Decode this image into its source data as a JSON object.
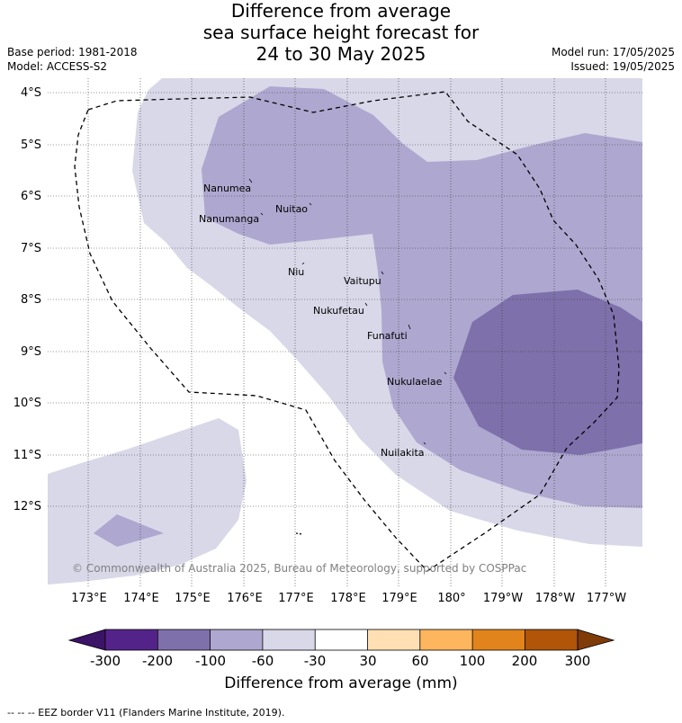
{
  "title": {
    "line1": "Difference from average",
    "line2": "sea surface height forecast for",
    "line3": "24 to 30 May 2025"
  },
  "meta": {
    "base_period": "Base period: 1981-2018",
    "model": "Model: ACCESS-S2",
    "model_run": "Model run: 17/05/2025",
    "issued": "Issued: 19/05/2025"
  },
  "latitudes": [
    "4°S",
    "5°S",
    "6°S",
    "7°S",
    "8°S",
    "9°S",
    "10°S",
    "11°S",
    "12°S"
  ],
  "longitudes": [
    "173°E",
    "174°E",
    "175°E",
    "176°E",
    "177°E",
    "178°E",
    "179°E",
    "180°",
    "179°W",
    "178°W",
    "177°W"
  ],
  "islands": [
    "Nanumea",
    "Nuitao",
    "Nanumanga",
    "Niu",
    "Vaitupu",
    "Nukufetau",
    "Funafuti",
    "Nukulaelae",
    "Nuilakita"
  ],
  "copyright": "© Commonwealth of Australia 2025, Bureau of Meteorology, supported by COSPPac",
  "colorbar": {
    "labels": [
      "-300",
      "-200",
      "-100",
      "-60",
      "-30",
      "30",
      "60",
      "100",
      "200",
      "300"
    ],
    "colors": [
      "#3b1367",
      "#54238a",
      "#7e70ab",
      "#aea7cf",
      "#d8d8e9",
      "#ffffff",
      "#ffdfb3",
      "#fdb55e",
      "#e1841b",
      "#b15508",
      "#7f3b08"
    ],
    "title": "Difference from average (mm)"
  },
  "fill_colors": {
    "light": "#d8d8e9",
    "medium": "#aea7cf",
    "dark": "#7e70ab"
  },
  "footnote": "--  --  -- EEZ border V11 (Flanders Marine Institute, 2019)."
}
